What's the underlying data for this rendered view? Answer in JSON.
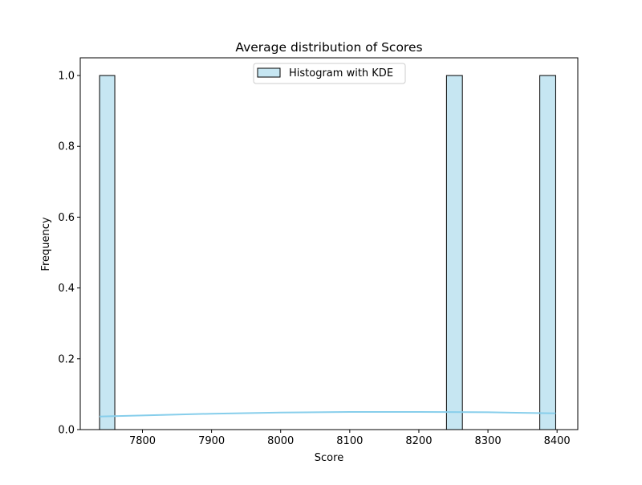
{
  "chart_data": {
    "type": "bar",
    "title": "Average distribution of Scores",
    "xlabel": "Score",
    "ylabel": "Frequency",
    "xlim": [
      7710,
      7970,
      8430
    ],
    "ylim": [
      0,
      1.05
    ],
    "xticks": [
      7800,
      7900,
      8000,
      8100,
      8200,
      8300,
      8400
    ],
    "yticks": [
      0.0,
      0.2,
      0.4,
      0.6,
      0.8,
      1.0
    ],
    "xtick_labels": [
      "7800",
      "7900",
      "8000",
      "8100",
      "8200",
      "8300",
      "8400"
    ],
    "ytick_labels": [
      "0.0",
      "0.2",
      "0.4",
      "0.6",
      "0.8",
      "1.0"
    ],
    "bars": [
      {
        "x0": 7738,
        "x1": 7760,
        "value": 1
      },
      {
        "x0": 8240,
        "x1": 8263,
        "value": 1
      },
      {
        "x0": 8375,
        "x1": 8398,
        "value": 1
      }
    ],
    "kde": {
      "x": [
        7738,
        7800,
        7900,
        8000,
        8100,
        8200,
        8300,
        8398
      ],
      "y": [
        0.037,
        0.04,
        0.045,
        0.048,
        0.05,
        0.05,
        0.049,
        0.046
      ]
    },
    "legend": {
      "label": "Histogram with KDE",
      "position": "upper center"
    },
    "grid": false,
    "colors": {
      "bar_fill": "#c6e6f2",
      "bar_edge": "#000000",
      "kde": "#87ceeb"
    }
  }
}
